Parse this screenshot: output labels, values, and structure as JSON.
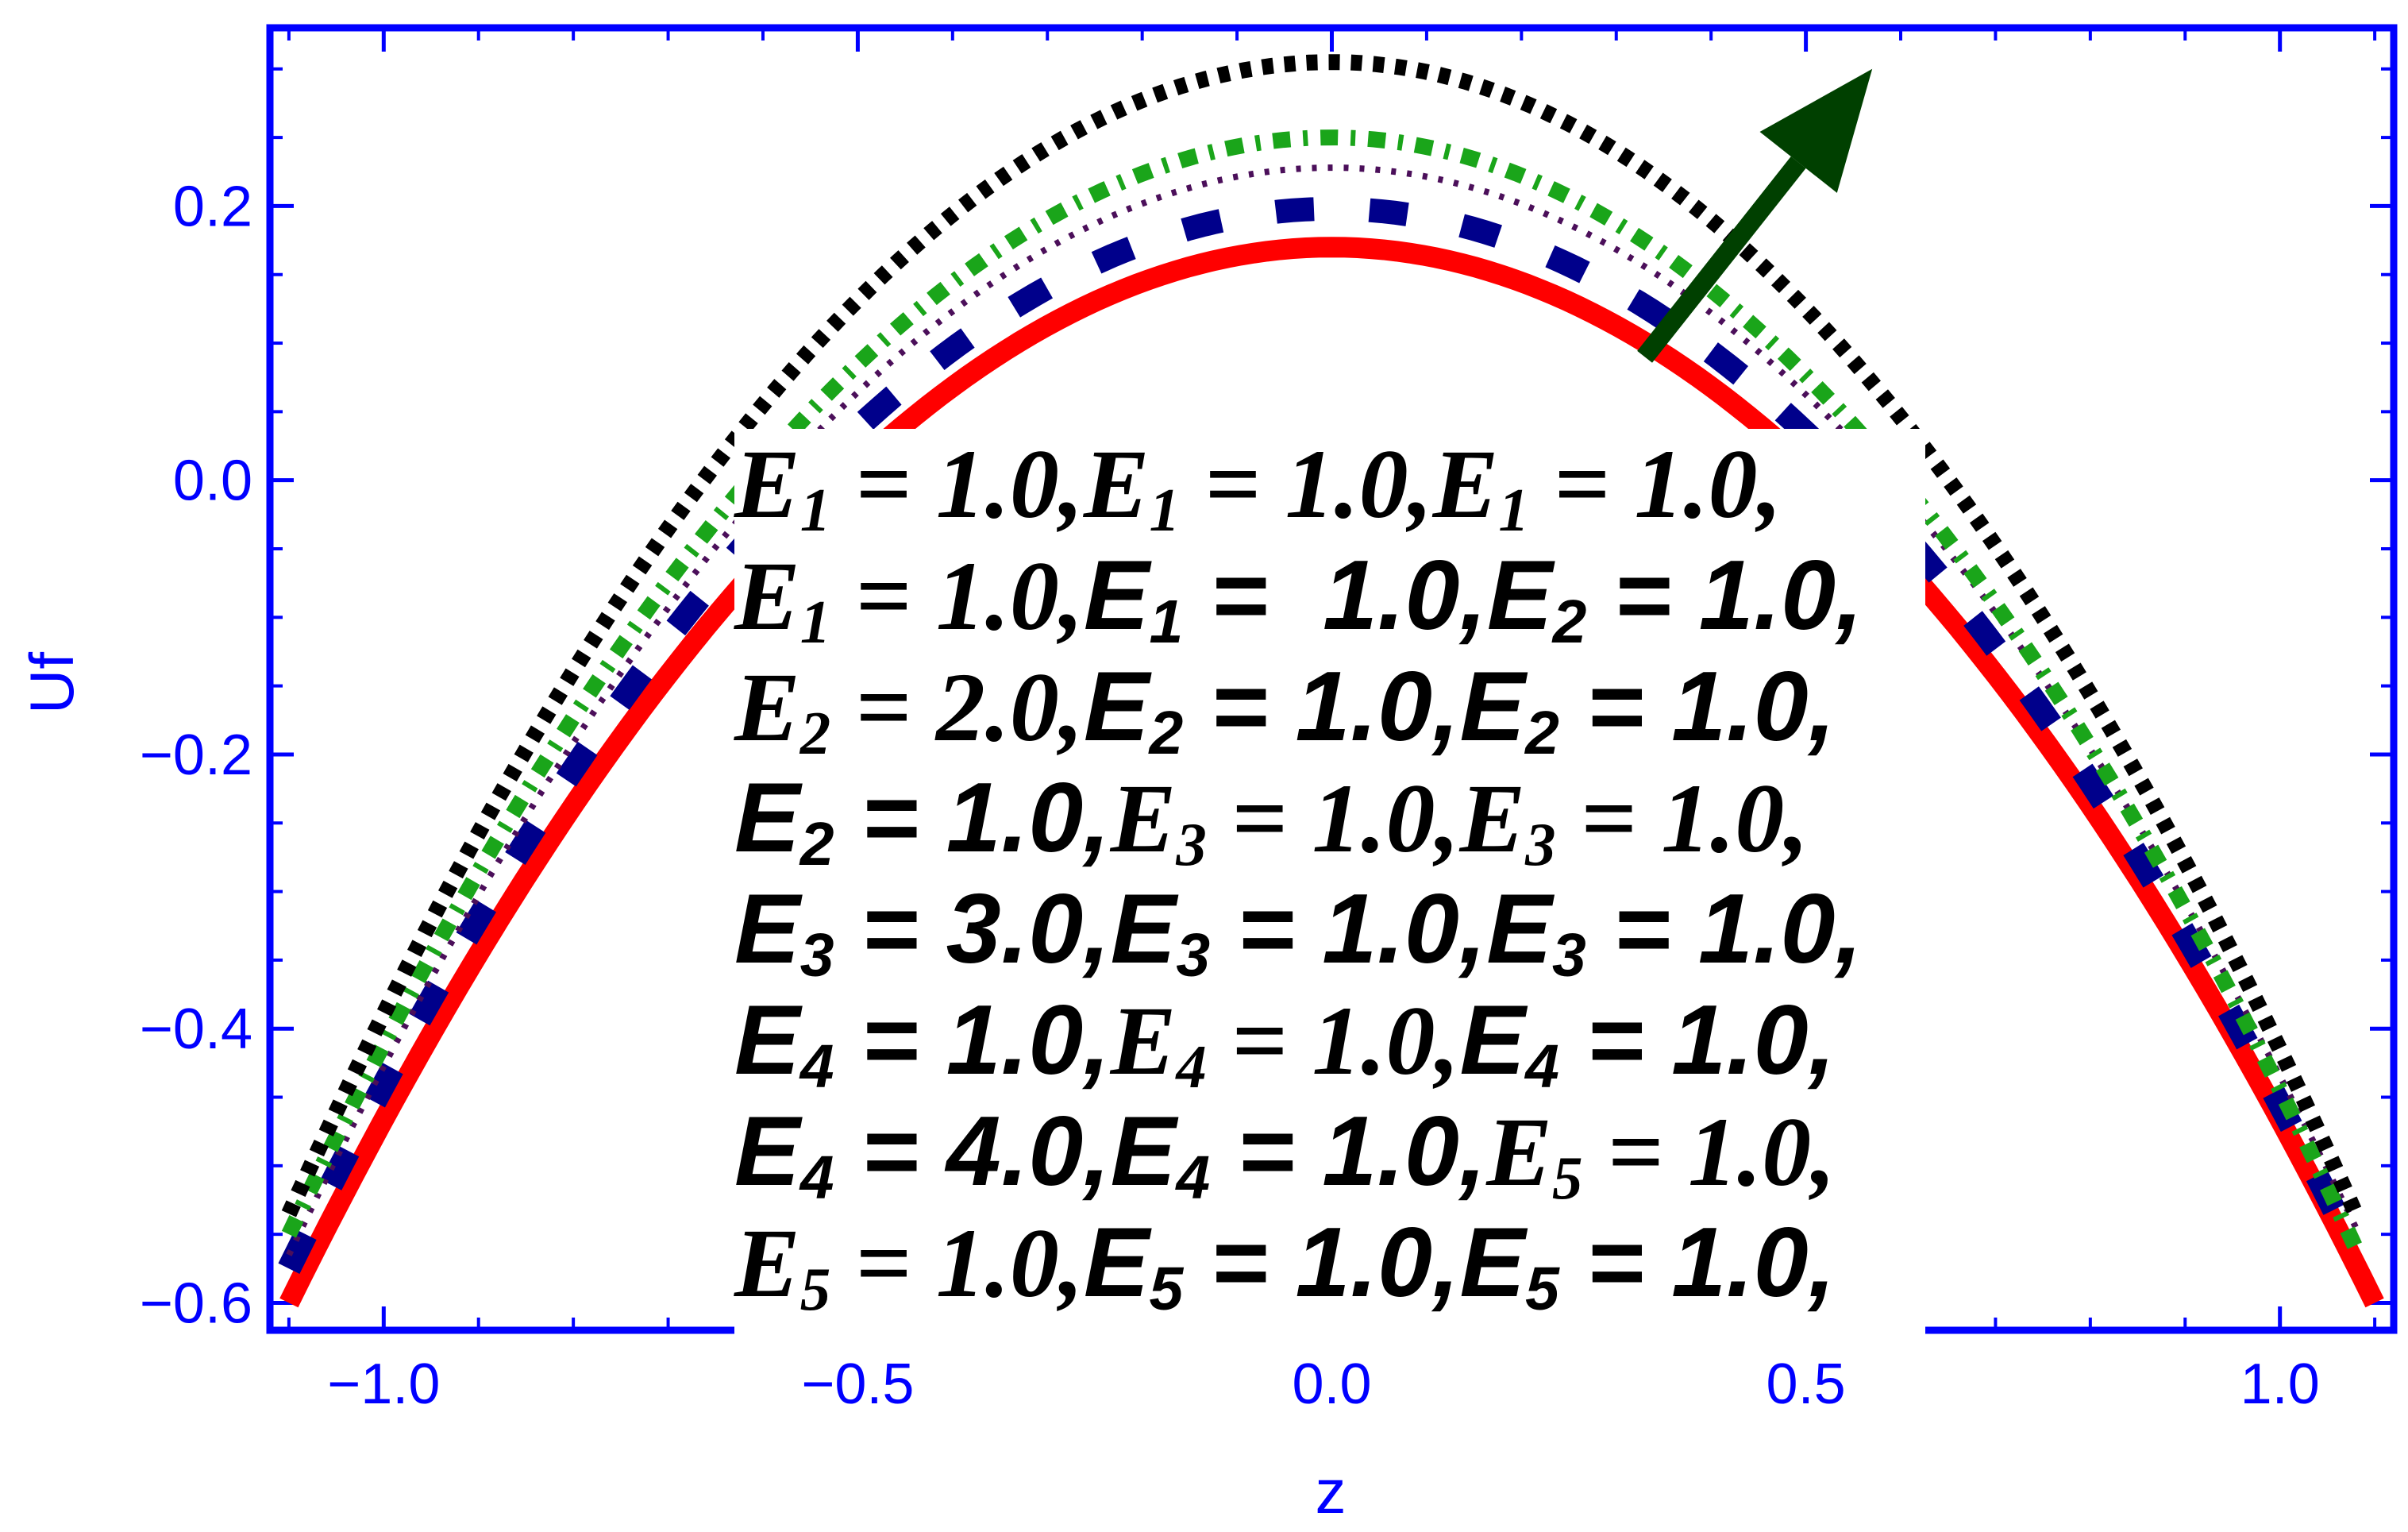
{
  "chart_data": {
    "type": "line",
    "xlabel": "z",
    "ylabel": "Uf",
    "xlim": [
      -1.12,
      1.12
    ],
    "ylim": [
      -0.62,
      0.33
    ],
    "x_ticks": [
      -1.0,
      -0.5,
      0.0,
      0.5,
      1.0
    ],
    "x_tick_labels": [
      "−1.0",
      "−0.5",
      "0.0",
      "0.5",
      "1.0"
    ],
    "y_ticks": [
      -0.6,
      -0.4,
      -0.2,
      0.0,
      0.2
    ],
    "y_tick_labels": [
      "−0.6",
      "−0.4",
      "−0.2",
      "0.0",
      "0.2"
    ],
    "grid": false,
    "series": [
      {
        "color": "#ff0000",
        "style": "solid",
        "peak": 0.17,
        "x_start": -1.1,
        "y_start": -0.6,
        "x_end": 1.1,
        "y_end": -0.6
      },
      {
        "color": "#00008b",
        "style": "dashed",
        "peak": 0.198,
        "x_start": -1.1,
        "y_start": -0.575,
        "x_end": 1.07,
        "y_end": -0.55
      },
      {
        "color": "#4b0f5a",
        "style": "dotted",
        "peak": 0.228,
        "x_start": -1.1,
        "y_start": -0.565,
        "x_end": 1.08,
        "y_end": -0.545
      },
      {
        "color": "#1aa51a",
        "style": "dotdash",
        "peak": 0.25,
        "x_start": -1.1,
        "y_start": -0.55,
        "x_end": 1.08,
        "y_end": -0.56
      },
      {
        "color": "#000000",
        "style": "dotted-thick",
        "peak": 0.305,
        "x_start": -1.1,
        "y_start": -0.535,
        "x_end": 1.08,
        "y_end": -0.535
      }
    ],
    "annotation": {
      "type": "arrow",
      "color": "#004000",
      "from": [
        0.33,
        0.09
      ],
      "to": [
        0.57,
        0.3
      ]
    }
  },
  "legend": {
    "lines": [
      [
        {
          "v": "E",
          "s": "1",
          "eq": " = 1.0,",
          "f": "serif"
        },
        {
          "v": "E",
          "s": "1",
          "eq": " = 1.0,",
          "f": "serif"
        },
        {
          "v": "E",
          "s": "1",
          "eq": " = 1.0,",
          "f": "serif"
        }
      ],
      [
        {
          "v": "E",
          "s": "1",
          "eq": " = 1.0,",
          "f": "serif"
        },
        {
          "v": "E",
          "s": "1",
          "eq": " =  1.0,",
          "f": "sans"
        },
        {
          "v": "E",
          "s": "2",
          "eq": " = 1.0,",
          "f": "sans"
        }
      ],
      [
        {
          "v": "E",
          "s": "2",
          "eq": " = 2.0,",
          "f": "serif"
        },
        {
          "v": "E",
          "s": "2",
          "eq": " = 1.0,",
          "f": "sans"
        },
        {
          "v": "E",
          "s": "2",
          "eq": " = 1.0,",
          "f": "sans"
        }
      ],
      [
        {
          "v": "E",
          "s": "2",
          "eq": " = 1.0,",
          "f": "sans"
        },
        {
          "v": "E",
          "s": "3",
          "eq": " = 1.0,",
          "f": "serif"
        },
        {
          "v": "E",
          "s": "3",
          "eq": " = 1.0,",
          "f": "serif"
        }
      ],
      [
        {
          "v": "E",
          "s": "3",
          "eq": " = 3.0,",
          "f": "sans"
        },
        {
          "v": "E",
          "s": "3",
          "eq": " = 1.0,",
          "f": "sans"
        },
        {
          "v": "E",
          "s": "3",
          "eq": " = 1.0,",
          "f": "sans"
        }
      ],
      [
        {
          "v": "E",
          "s": "4",
          "eq": " = 1.0,",
          "f": "sans"
        },
        {
          "v": "E",
          "s": "4",
          "eq": " = 1.0,",
          "f": "serif"
        },
        {
          "v": "E",
          "s": "4",
          "eq": " = 1.0,",
          "f": "sans"
        }
      ],
      [
        {
          "v": "E",
          "s": "4",
          "eq": " = 4.0,",
          "f": "sans"
        },
        {
          "v": "E",
          "s": "4",
          "eq": " = 1.0,",
          "f": "sans"
        },
        {
          "v": "E",
          "s": "5",
          "eq": " = 1.0,",
          "f": "serif"
        }
      ],
      [
        {
          "v": "E",
          "s": "5",
          "eq": " = 1.0,",
          "f": "serif"
        },
        {
          "v": "E",
          "s": "5",
          "eq": " = 1.0,",
          "f": "sans"
        },
        {
          "v": "E",
          "s": "5",
          "eq": " = 1.0,",
          "f": "sans"
        }
      ]
    ]
  }
}
